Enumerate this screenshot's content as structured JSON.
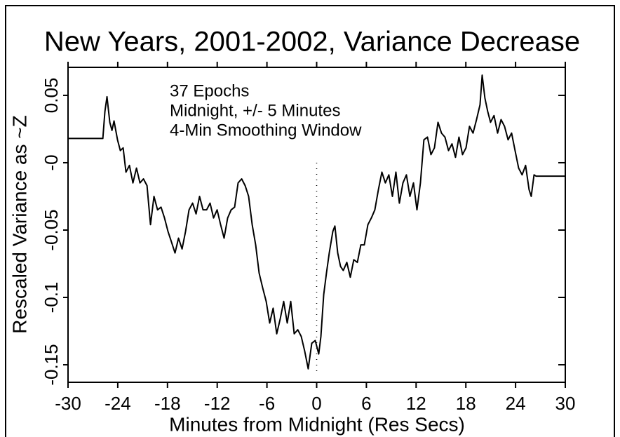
{
  "chart_data": {
    "type": "line",
    "title": "New Years, 2001-2002, Variance Decrease",
    "x_label": "Minutes from Midnight (Res Secs)",
    "y_label": "Rescaled Variance as ~Z",
    "annotations": [
      "37 Epochs",
      "Midnight, +/- 5 Minutes",
      "4-Min Smoothing Window"
    ],
    "color": "#000000",
    "vline": 0,
    "xlim": [
      -30,
      30
    ],
    "xticks": [
      -30,
      -24,
      -18,
      -12,
      -6,
      0,
      6,
      12,
      18,
      24,
      30
    ],
    "ylim": [
      -0.163,
      0.0708
    ],
    "yticks": [
      -0.15,
      -0.1,
      -0.05,
      {
        "value": 0,
        "label": "-0"
      },
      0.05
    ],
    "x": [
      -30.0,
      -25.8,
      -25.55,
      -25.3,
      -24.96,
      -24.7,
      -24.45,
      -24.03,
      -23.69,
      -23.35,
      -23.01,
      -22.59,
      -22.17,
      -21.74,
      -21.32,
      -20.9,
      -20.47,
      -20.05,
      -19.63,
      -19.2,
      -18.78,
      -18.36,
      -17.94,
      -17.51,
      -17.09,
      -16.67,
      -16.24,
      -15.82,
      -15.4,
      -14.97,
      -14.55,
      -14.13,
      -13.71,
      -13.28,
      -12.86,
      -12.44,
      -12.01,
      -11.59,
      -11.17,
      -10.74,
      -10.32,
      -9.9,
      -9.48,
      -9.05,
      -8.63,
      -8.21,
      -7.78,
      -7.36,
      -6.94,
      -6.51,
      -6.09,
      -5.67,
      -5.25,
      -4.82,
      -4.4,
      -3.98,
      -3.55,
      -3.13,
      -2.71,
      -2.28,
      -1.86,
      -1.44,
      -1.02,
      -0.59,
      -0.17,
      0.25,
      0.51,
      0.85,
      1.18,
      1.52,
      1.95,
      2.2,
      2.54,
      2.88,
      3.21,
      3.64,
      4.06,
      4.48,
      4.91,
      5.33,
      5.75,
      6.18,
      6.6,
      7.02,
      7.45,
      7.87,
      8.29,
      8.71,
      9.14,
      9.56,
      9.98,
      10.41,
      10.83,
      11.25,
      11.68,
      12.1,
      12.52,
      12.94,
      13.37,
      13.79,
      14.21,
      14.64,
      15.06,
      15.48,
      15.91,
      16.33,
      16.75,
      17.17,
      17.6,
      18.02,
      18.44,
      18.87,
      19.29,
      19.71,
      19.97,
      20.3,
      20.64,
      20.98,
      21.4,
      21.83,
      22.25,
      22.67,
      23.1,
      23.52,
      23.94,
      24.37,
      24.79,
      25.21,
      25.63,
      25.89,
      26.23,
      26.48,
      30.0
    ],
    "values": [
      0.018,
      0.018,
      0.038,
      0.049,
      0.03,
      0.024,
      0.031,
      0.017,
      0.009,
      0.011,
      -0.007,
      -0.002,
      -0.015,
      -0.004,
      -0.015,
      -0.012,
      -0.017,
      -0.046,
      -0.025,
      -0.035,
      -0.033,
      -0.041,
      -0.051,
      -0.059,
      -0.067,
      -0.056,
      -0.064,
      -0.051,
      -0.035,
      -0.03,
      -0.038,
      -0.025,
      -0.035,
      -0.035,
      -0.03,
      -0.041,
      -0.035,
      -0.046,
      -0.056,
      -0.041,
      -0.035,
      -0.033,
      -0.015,
      -0.012,
      -0.017,
      -0.025,
      -0.046,
      -0.061,
      -0.082,
      -0.093,
      -0.103,
      -0.119,
      -0.108,
      -0.127,
      -0.116,
      -0.103,
      -0.119,
      -0.103,
      -0.127,
      -0.124,
      -0.129,
      -0.14,
      -0.153,
      -0.134,
      -0.132,
      -0.142,
      -0.129,
      -0.098,
      -0.082,
      -0.067,
      -0.051,
      -0.047,
      -0.067,
      -0.077,
      -0.08,
      -0.074,
      -0.085,
      -0.072,
      -0.074,
      -0.061,
      -0.061,
      -0.046,
      -0.041,
      -0.035,
      -0.02,
      -0.007,
      -0.015,
      -0.009,
      -0.025,
      -0.007,
      -0.03,
      -0.015,
      -0.009,
      -0.025,
      -0.015,
      -0.035,
      -0.015,
      0.017,
      0.019,
      0.006,
      0.011,
      0.03,
      0.022,
      0.019,
      0.009,
      0.014,
      0.004,
      0.019,
      0.006,
      0.011,
      0.027,
      0.022,
      0.032,
      0.043,
      0.065,
      0.048,
      0.038,
      0.03,
      0.035,
      0.022,
      0.032,
      0.027,
      0.017,
      0.022,
      0.009,
      -0.004,
      -0.009,
      -0.002,
      -0.02,
      -0.025,
      -0.009,
      -0.01,
      -0.01
    ]
  }
}
